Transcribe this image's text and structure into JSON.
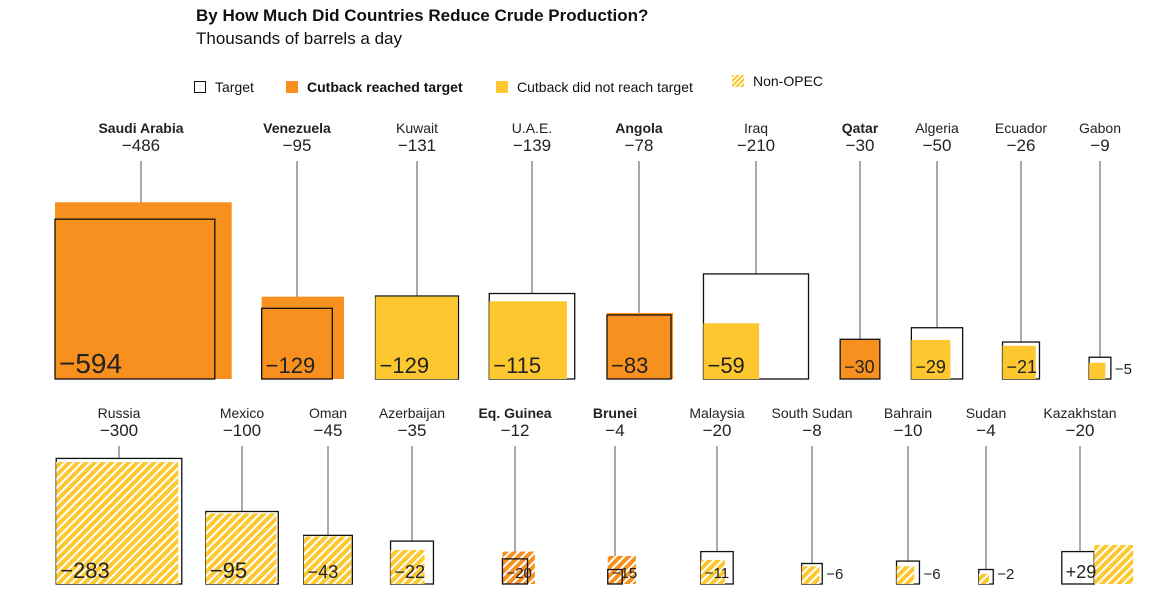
{
  "title": "By How Much Did Countries Reduce Crude Production?",
  "subtitle": "Thousands of barrels a day",
  "legend": {
    "target": "Target",
    "reached": "Cutback reached target",
    "not_reached": "Cutback did not reach target",
    "non_opec": "Non-OPEC"
  },
  "colors": {
    "reached": "#f7901e",
    "not_reached": "#fdc82f",
    "outline": "#111111",
    "hatch_bg": "#ffffff"
  },
  "chart_data": {
    "type": "proportional-area squares",
    "unit": "Thousands of barrels a day",
    "rows": [
      {
        "group": "OPEC",
        "countries": [
          {
            "name": "Saudi Arabia",
            "target": "−486",
            "actual": "−594",
            "target_value": -486,
            "actual_value": -594,
            "status": "reached",
            "non_opec": false,
            "bold": true
          },
          {
            "name": "Venezuela",
            "target": "−95",
            "actual": "−129",
            "target_value": -95,
            "actual_value": -129,
            "status": "reached",
            "non_opec": false,
            "bold": true
          },
          {
            "name": "Kuwait",
            "target": "−131",
            "actual": "−129",
            "target_value": -131,
            "actual_value": -129,
            "status": "not_reached",
            "non_opec": false,
            "bold": false
          },
          {
            "name": "U.A.E.",
            "target": "−139",
            "actual": "−115",
            "target_value": -139,
            "actual_value": -115,
            "status": "not_reached",
            "non_opec": false,
            "bold": false
          },
          {
            "name": "Angola",
            "target": "−78",
            "actual": "−83",
            "target_value": -78,
            "actual_value": -83,
            "status": "reached",
            "non_opec": false,
            "bold": true
          },
          {
            "name": "Iraq",
            "target": "−210",
            "actual": "−59",
            "target_value": -210,
            "actual_value": -59,
            "status": "not_reached",
            "non_opec": false,
            "bold": false
          },
          {
            "name": "Qatar",
            "target": "−30",
            "actual": "−30",
            "target_value": -30,
            "actual_value": -30,
            "status": "reached",
            "non_opec": false,
            "bold": true
          },
          {
            "name": "Algeria",
            "target": "−50",
            "actual": "−29",
            "target_value": -50,
            "actual_value": -29,
            "status": "not_reached",
            "non_opec": false,
            "bold": false
          },
          {
            "name": "Ecuador",
            "target": "−26",
            "actual": "−21",
            "target_value": -26,
            "actual_value": -21,
            "status": "not_reached",
            "non_opec": false,
            "bold": false
          },
          {
            "name": "Gabon",
            "target": "−9",
            "actual": "−5",
            "target_value": -9,
            "actual_value": -5,
            "status": "not_reached",
            "non_opec": false,
            "bold": false
          }
        ]
      },
      {
        "group": "Non-OPEC",
        "countries": [
          {
            "name": "Russia",
            "target": "−300",
            "actual": "−283",
            "target_value": -300,
            "actual_value": -283,
            "status": "not_reached",
            "non_opec": true,
            "bold": false
          },
          {
            "name": "Mexico",
            "target": "−100",
            "actual": "−95",
            "target_value": -100,
            "actual_value": -95,
            "status": "not_reached",
            "non_opec": true,
            "bold": false
          },
          {
            "name": "Oman",
            "target": "−45",
            "actual": "−43",
            "target_value": -45,
            "actual_value": -43,
            "status": "not_reached",
            "non_opec": true,
            "bold": false
          },
          {
            "name": "Azerbaijan",
            "target": "−35",
            "actual": "−22",
            "target_value": -35,
            "actual_value": -22,
            "status": "not_reached",
            "non_opec": true,
            "bold": false
          },
          {
            "name": "Eq. Guinea",
            "target": "−12",
            "actual": "−20",
            "target_value": -12,
            "actual_value": -20,
            "status": "reached",
            "non_opec": true,
            "bold": true
          },
          {
            "name": "Brunei",
            "target": "−4",
            "actual": "−15",
            "target_value": -4,
            "actual_value": -15,
            "status": "reached",
            "non_opec": true,
            "bold": true
          },
          {
            "name": "Malaysia",
            "target": "−20",
            "actual": "−11",
            "target_value": -20,
            "actual_value": -11,
            "status": "not_reached",
            "non_opec": true,
            "bold": false
          },
          {
            "name": "South Sudan",
            "target": "−8",
            "actual": "−6",
            "target_value": -8,
            "actual_value": -6,
            "status": "not_reached",
            "non_opec": true,
            "bold": false
          },
          {
            "name": "Bahrain",
            "target": "−10",
            "actual": "−6",
            "target_value": -10,
            "actual_value": -6,
            "status": "not_reached",
            "non_opec": true,
            "bold": false
          },
          {
            "name": "Sudan",
            "target": "−4",
            "actual": "−2",
            "target_value": -4,
            "actual_value": -2,
            "status": "not_reached",
            "non_opec": true,
            "bold": false
          },
          {
            "name": "Kazakhstan",
            "target": "−20",
            "actual": "+29",
            "target_value": -20,
            "actual_value": 29,
            "status": "not_reached",
            "non_opec": true,
            "bold": false
          }
        ]
      }
    ]
  }
}
